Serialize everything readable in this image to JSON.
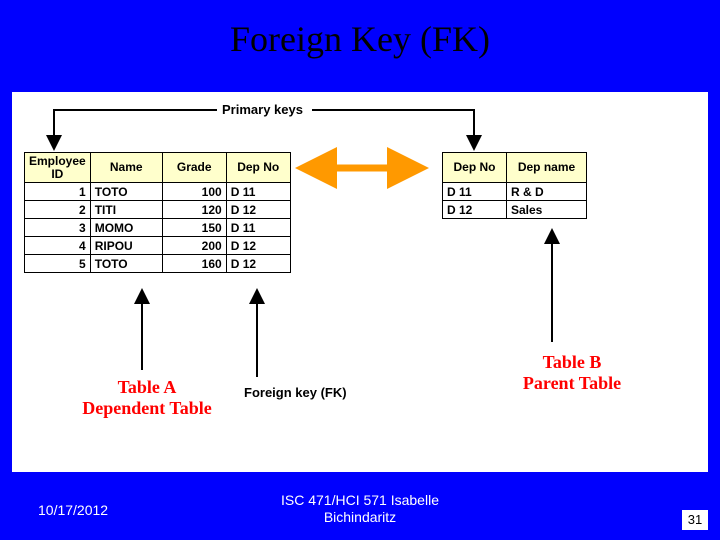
{
  "title": "Foreign Key (FK)",
  "background_color": "#0000fe",
  "canvas_color": "#ffffff",
  "header_fill": "#ffffcc",
  "pk_label": "Primary keys",
  "fk_label": "Foreign key (FK)",
  "tableA": {
    "name_label": "Table A",
    "sub_label": "Dependent Table",
    "columns": [
      "Employee ID",
      "Name",
      "Grade",
      "Dep No"
    ],
    "col_align": [
      "right",
      "left",
      "right",
      "left"
    ],
    "rows": [
      [
        "1",
        "TOTO",
        "100",
        "D 11"
      ],
      [
        "2",
        "TITI",
        "120",
        "D 12"
      ],
      [
        "3",
        "MOMO",
        "150",
        "D 11"
      ],
      [
        "4",
        "RIPOU",
        "200",
        "D 12"
      ],
      [
        "5",
        "TOTO",
        "160",
        "D 12"
      ]
    ]
  },
  "tableB": {
    "name_label": "Table B",
    "sub_label": "Parent Table",
    "columns": [
      "Dep No",
      "Dep name"
    ],
    "col_align": [
      "left",
      "left"
    ],
    "rows": [
      [
        "D 11",
        "R & D"
      ],
      [
        "D 12",
        "Sales"
      ]
    ]
  },
  "arrows": {
    "pk_line_color": "#000000",
    "pk_line_width": 2,
    "fk_line_color": "#000000",
    "fk_line_width": 2,
    "link_arrow_color": "#ff9900",
    "link_arrow_width": 6,
    "vertical_arrow_color": "#000000",
    "vertical_arrow_width": 2
  },
  "labels": {
    "tableA_label_color": "#ff0000",
    "tableB_label_color": "#ff0000",
    "font_family": "Comic Sans MS"
  },
  "footer": {
    "date": "10/17/2012",
    "center_line1": "ISC 471/HCI 571   Isabelle",
    "center_line2": "Bichindaritz",
    "page": "31"
  }
}
